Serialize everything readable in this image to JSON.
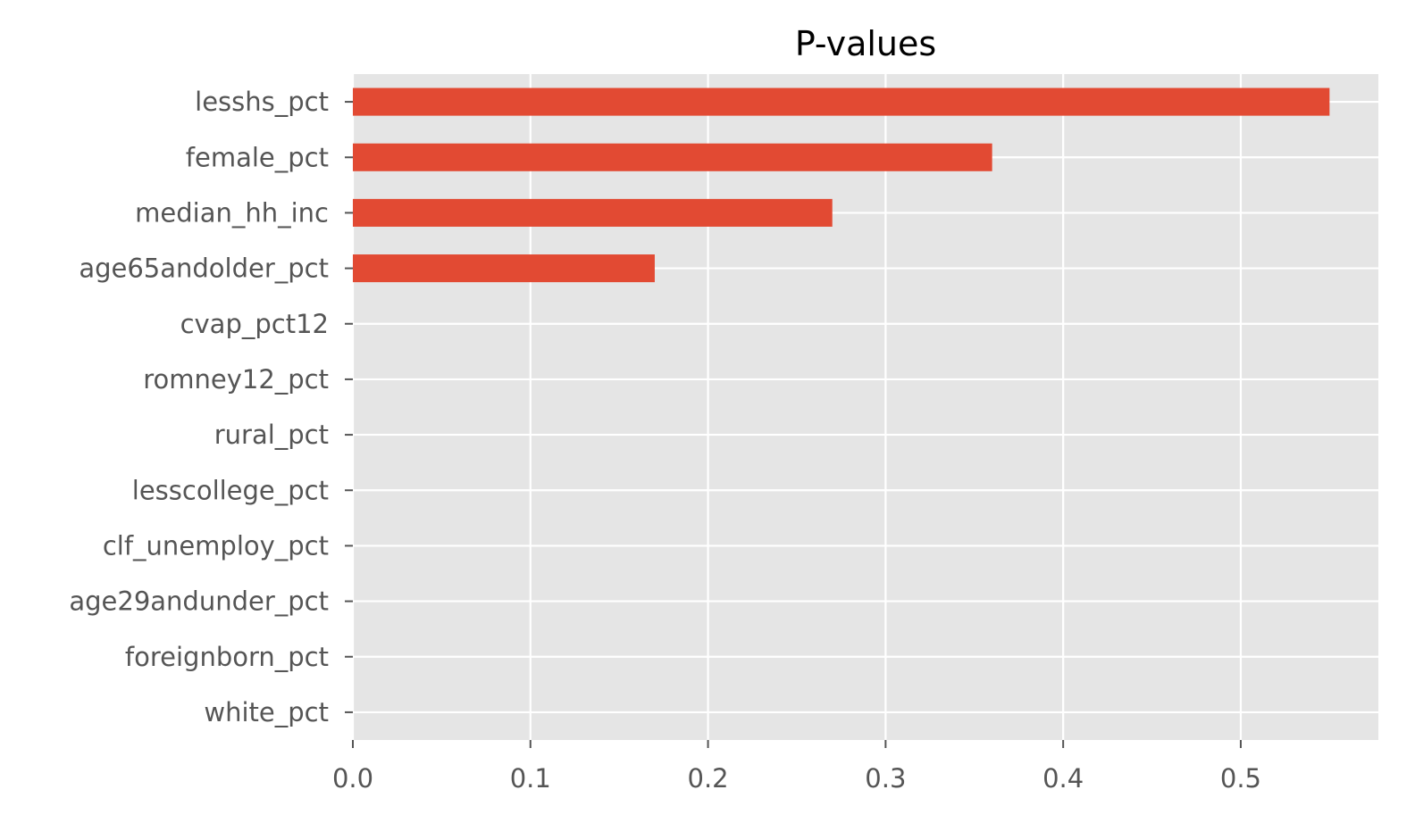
{
  "chart_data": {
    "type": "bar",
    "orientation": "horizontal",
    "title": "P-values",
    "xlabel": "",
    "ylabel": "",
    "categories": [
      "lesshs_pct",
      "female_pct",
      "median_hh_inc",
      "age65andolder_pct",
      "cvap_pct12",
      "romney12_pct",
      "rural_pct",
      "lesscollege_pct",
      "clf_unemploy_pct",
      "age29andunder_pct",
      "foreignborn_pct",
      "white_pct"
    ],
    "values": [
      0.55,
      0.36,
      0.27,
      0.17,
      0.0,
      0.0,
      0.0,
      0.0,
      0.0,
      0.0,
      0.0,
      0.0
    ],
    "xlim": [
      0,
      0.5775
    ],
    "xticks": [
      0.0,
      0.1,
      0.2,
      0.3,
      0.4,
      0.5
    ],
    "xtick_labels": [
      "0.0",
      "0.1",
      "0.2",
      "0.3",
      "0.4",
      "0.5"
    ],
    "grid": true,
    "legend": "none",
    "colors": {
      "bar": "#E24A33",
      "plot_background": "#E5E5E5",
      "grid": "#FFFFFF",
      "tick_text": "#555555",
      "title_text": "#000000"
    }
  }
}
